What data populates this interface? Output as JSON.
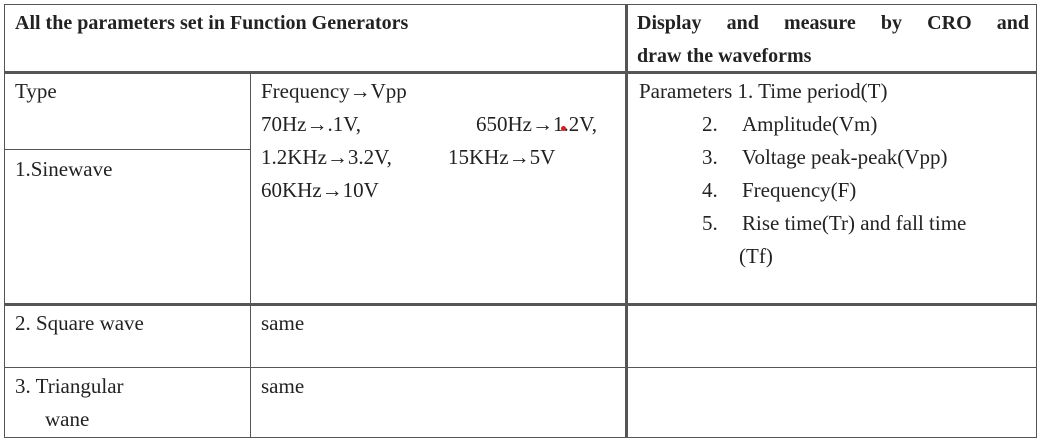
{
  "header": {
    "left": "All the parameters set in Function Generators",
    "right_line1": "Display and measure by CRO and",
    "right_line2": "draw the waveforms"
  },
  "type_label": "Type",
  "types": [
    {
      "label": "1.Sinewave"
    },
    {
      "label": "2. Square wave",
      "params": "same"
    },
    {
      "label_line1": "3. Triangular",
      "label_line2": "wane",
      "params": "same"
    }
  ],
  "frequency": {
    "heading": "Frequency→Vpp",
    "row1_a": "70Hz→.1V,",
    "row1_b": "650Hz→1.2V,",
    "row2_a": "1.2KHz→3.2V,",
    "row2_b": "15KHz→5V",
    "row3_a": "60KHz→10V"
  },
  "measure": {
    "intro": "Parameters 1. Time period(T)",
    "items": [
      {
        "num": "2.",
        "text": "Amplitude(Vm)"
      },
      {
        "num": "3.",
        "text": "Voltage peak-peak(Vpp)"
      },
      {
        "num": "4.",
        "text": "Frequency(F)"
      },
      {
        "num": "5.",
        "text": "Rise time(Tr) and fall time"
      }
    ],
    "continuation": "(Tf)"
  }
}
